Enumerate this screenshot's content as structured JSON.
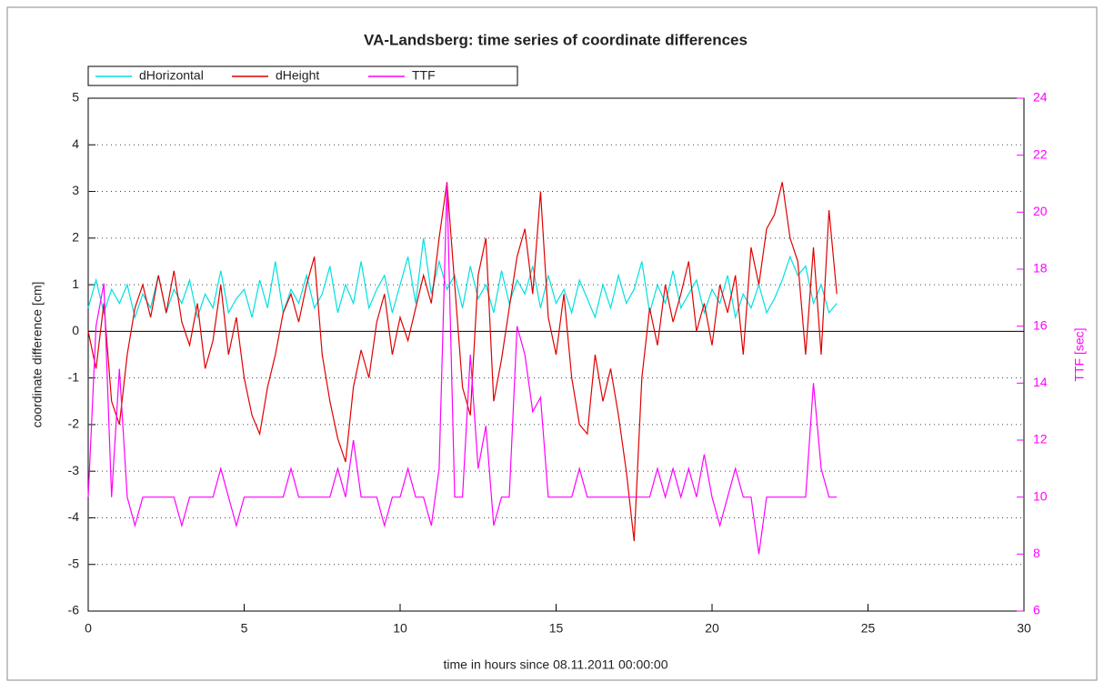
{
  "chart_data": {
    "type": "line",
    "title": "VA-Landsberg: time series of coordinate differences",
    "xlabel": "time in hours since 08.11.2011 00:00:00",
    "ylabel": "coordinate difference [cm]",
    "y2label": "TTF [sec]",
    "xlim": [
      0,
      30
    ],
    "xticks": [
      0,
      5,
      10,
      15,
      20,
      25,
      30
    ],
    "ylim": [
      -6,
      5
    ],
    "yticks": [
      -6,
      -5,
      -4,
      -3,
      -2,
      -1,
      0,
      1,
      2,
      3,
      4,
      5
    ],
    "y2lim": [
      6,
      24
    ],
    "y2ticks": [
      6,
      8,
      10,
      12,
      14,
      16,
      18,
      20,
      22,
      24
    ],
    "grid": true,
    "legend": "top-left",
    "x": [
      0,
      0.25,
      0.5,
      0.75,
      1,
      1.25,
      1.5,
      1.75,
      2,
      2.25,
      2.5,
      2.75,
      3,
      3.25,
      3.5,
      3.75,
      4,
      4.25,
      4.5,
      4.75,
      5,
      5.25,
      5.5,
      5.75,
      6,
      6.25,
      6.5,
      6.75,
      7,
      7.25,
      7.5,
      7.75,
      8,
      8.25,
      8.5,
      8.75,
      9,
      9.25,
      9.5,
      9.75,
      10,
      10.25,
      10.5,
      10.75,
      11,
      11.25,
      11.5,
      11.75,
      12,
      12.25,
      12.5,
      12.75,
      13,
      13.25,
      13.5,
      13.75,
      14,
      14.25,
      14.5,
      14.75,
      15,
      15.25,
      15.5,
      15.75,
      16,
      16.25,
      16.5,
      16.75,
      17,
      17.25,
      17.5,
      17.75,
      18,
      18.25,
      18.5,
      18.75,
      19,
      19.25,
      19.5,
      19.75,
      20,
      20.25,
      20.5,
      20.75,
      21,
      21.25,
      21.5,
      21.75,
      22,
      22.25,
      22.5,
      22.75,
      23,
      23.25,
      23.5,
      23.75,
      24
    ],
    "series": [
      {
        "name": "dHorizontal",
        "color": "#00e0e0",
        "values": [
          0.5,
          1.1,
          0.4,
          0.9,
          0.6,
          1.0,
          0.3,
          0.8,
          0.5,
          1.2,
          0.4,
          0.9,
          0.6,
          1.1,
          0.3,
          0.8,
          0.5,
          1.3,
          0.4,
          0.7,
          0.9,
          0.3,
          1.1,
          0.5,
          1.5,
          0.4,
          0.9,
          0.6,
          1.2,
          0.5,
          0.8,
          1.4,
          0.4,
          1.0,
          0.6,
          1.5,
          0.5,
          0.9,
          1.2,
          0.4,
          1.0,
          1.6,
          0.6,
          2.0,
          0.8,
          1.5,
          0.9,
          1.2,
          0.5,
          1.4,
          0.7,
          1.0,
          0.4,
          1.3,
          0.6,
          1.1,
          0.8,
          1.4,
          0.5,
          1.2,
          0.6,
          0.9,
          0.4,
          1.1,
          0.7,
          0.3,
          1.0,
          0.5,
          1.2,
          0.6,
          0.9,
          1.5,
          0.4,
          1.0,
          0.6,
          1.3,
          0.5,
          0.8,
          1.1,
          0.4,
          0.9,
          0.6,
          1.2,
          0.3,
          0.8,
          0.5,
          1.0,
          0.4,
          0.7,
          1.1,
          1.6,
          1.2,
          1.4,
          0.6,
          1.0,
          0.4,
          0.6
        ]
      },
      {
        "name": "dHeight",
        "color": "#e00000",
        "values": [
          0,
          -0.8,
          0.6,
          -1.5,
          -2.0,
          -0.5,
          0.5,
          1.0,
          0.3,
          1.2,
          0.4,
          1.3,
          0.2,
          -0.3,
          0.6,
          -0.8,
          -0.2,
          1.0,
          -0.5,
          0.3,
          -1.0,
          -1.8,
          -2.2,
          -1.2,
          -0.5,
          0.4,
          0.8,
          0.2,
          1.0,
          1.6,
          -0.5,
          -1.5,
          -2.3,
          -2.8,
          -1.2,
          -0.4,
          -1.0,
          0.2,
          0.8,
          -0.5,
          0.3,
          -0.2,
          0.5,
          1.2,
          0.6,
          2.0,
          3.2,
          1.0,
          -1.2,
          -1.8,
          1.2,
          2.0,
          -1.5,
          -0.6,
          0.5,
          1.6,
          2.2,
          0.8,
          3.0,
          0.3,
          -0.5,
          0.8,
          -1.0,
          -2.0,
          -2.2,
          -0.5,
          -1.5,
          -0.8,
          -1.8,
          -3.0,
          -4.5,
          -1.0,
          0.5,
          -0.3,
          1.0,
          0.2,
          0.8,
          1.5,
          0.0,
          0.6,
          -0.3,
          1.0,
          0.4,
          1.2,
          -0.5,
          1.8,
          1.0,
          2.2,
          2.5,
          3.2,
          2.0,
          1.5,
          -0.5,
          1.8,
          -0.5,
          2.6,
          0.8
        ]
      },
      {
        "name": "TTF",
        "color": "#ff00ff",
        "axis": "y2",
        "values": [
          10,
          16,
          17.5,
          10,
          14.5,
          10,
          9,
          10,
          10,
          10,
          10,
          10,
          9,
          10,
          10,
          10,
          10,
          11,
          10,
          9,
          10,
          10,
          10,
          10,
          10,
          10,
          11,
          10,
          10,
          10,
          10,
          10,
          11,
          10,
          12,
          10,
          10,
          10,
          9,
          10,
          10,
          11,
          10,
          10,
          9,
          11,
          21,
          10,
          10,
          15,
          11,
          12.5,
          9,
          10,
          10,
          16,
          15,
          13,
          13.5,
          10,
          10,
          10,
          10,
          11,
          10,
          10,
          10,
          10,
          10,
          10,
          10,
          10,
          10,
          11,
          10,
          11,
          10,
          11,
          10,
          11.5,
          10,
          9,
          10,
          11,
          10,
          10,
          8,
          10,
          10,
          10,
          10,
          10,
          10,
          14,
          11,
          10,
          10
        ]
      }
    ]
  }
}
